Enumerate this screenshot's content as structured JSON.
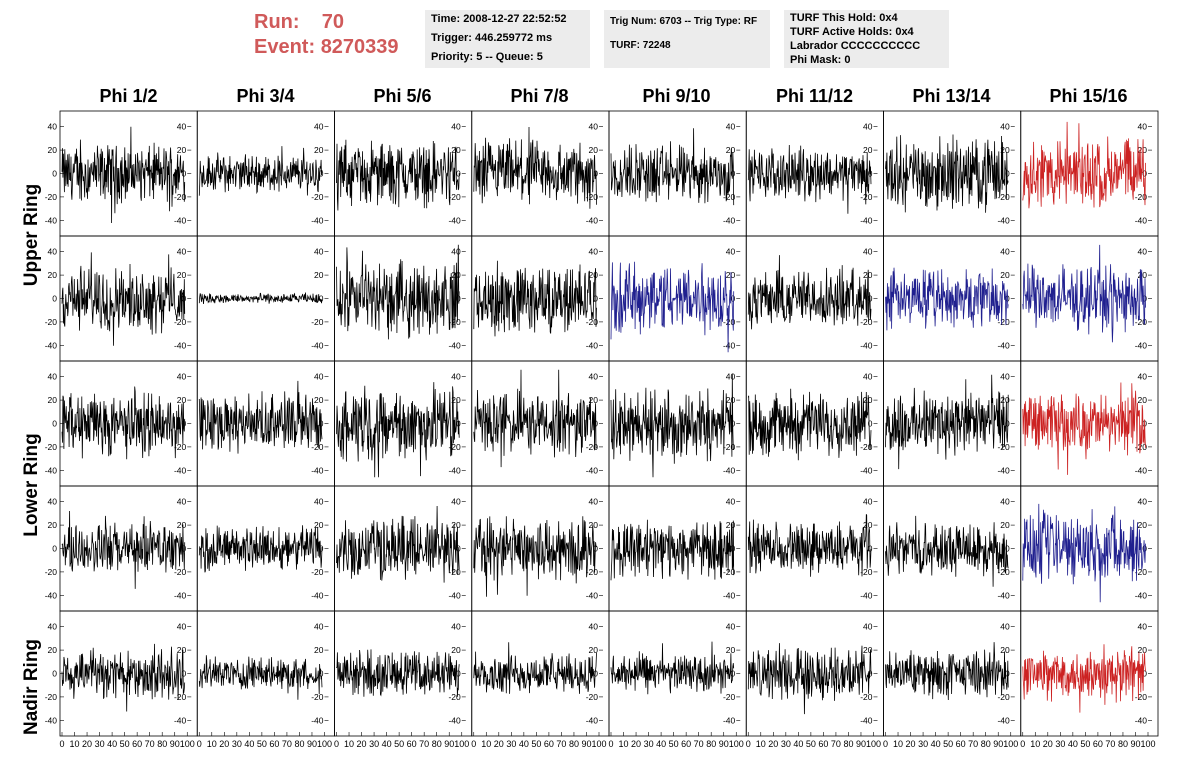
{
  "header": {
    "run_label": "Run:",
    "run_value": "70",
    "event_label": "Event:",
    "event_value": "8270339",
    "accent_color": "#d05a5a"
  },
  "info_boxes": {
    "time": "Time: 2008-12-27 22:52:52",
    "trigger": "Trigger: 446.259772 ms",
    "priority": "Priority: 5 -- Queue: 5",
    "trig_num": "Trig Num: 6703 -- Trig Type: RF",
    "turf": "TURF: 72248",
    "hold": "TURF This Hold: 0x4",
    "active_holds": "TURF Active Holds: 0x4",
    "labrador": "Labrador CCCCCCCCCC",
    "phi_mask": "Phi Mask: 0"
  },
  "chart_data": {
    "type": "line",
    "columns": [
      "Phi 1/2",
      "Phi 3/4",
      "Phi 5/6",
      "Phi 7/8",
      "Phi 9/10",
      "Phi 11/12",
      "Phi 13/14",
      "Phi 15/16"
    ],
    "rows": [
      {
        "name": "Upper Ring",
        "subrows": 2
      },
      {
        "name": "Lower Ring",
        "subrows": 2
      },
      {
        "name": "Nadir Ring",
        "subrows": 1
      }
    ],
    "ylim": [
      -50,
      50
    ],
    "y_ticks": [
      -40,
      -20,
      0,
      20,
      40
    ],
    "xlim": [
      0,
      100
    ],
    "x_ticks": [
      0,
      10,
      20,
      30,
      40,
      50,
      60,
      70,
      80,
      90,
      100
    ],
    "colors": {
      "normal": "#000000",
      "triggered": "#cc2222",
      "l2": "#20208f"
    },
    "panels": [
      [
        "normal",
        "normal",
        "normal",
        "normal",
        "normal",
        "normal",
        "normal",
        "triggered"
      ],
      [
        "normal",
        "normal",
        "normal",
        "normal",
        "l2",
        "normal",
        "l2",
        "l2"
      ],
      [
        "normal",
        "normal",
        "normal",
        "normal",
        "normal",
        "normal",
        "normal",
        "triggered"
      ],
      [
        "normal",
        "normal",
        "normal",
        "normal",
        "normal",
        "normal",
        "normal",
        "l2"
      ],
      [
        "normal",
        "normal",
        "normal",
        "normal",
        "normal",
        "normal",
        "normal",
        "triggered"
      ]
    ],
    "amplitudes": [
      [
        18,
        12,
        20,
        20,
        18,
        16,
        22,
        22
      ],
      [
        20,
        3,
        22,
        22,
        22,
        18,
        18,
        20
      ],
      [
        20,
        18,
        22,
        20,
        22,
        20,
        20,
        18
      ],
      [
        16,
        14,
        20,
        20,
        18,
        16,
        16,
        22
      ],
      [
        16,
        10,
        14,
        12,
        12,
        16,
        14,
        16
      ]
    ]
  }
}
